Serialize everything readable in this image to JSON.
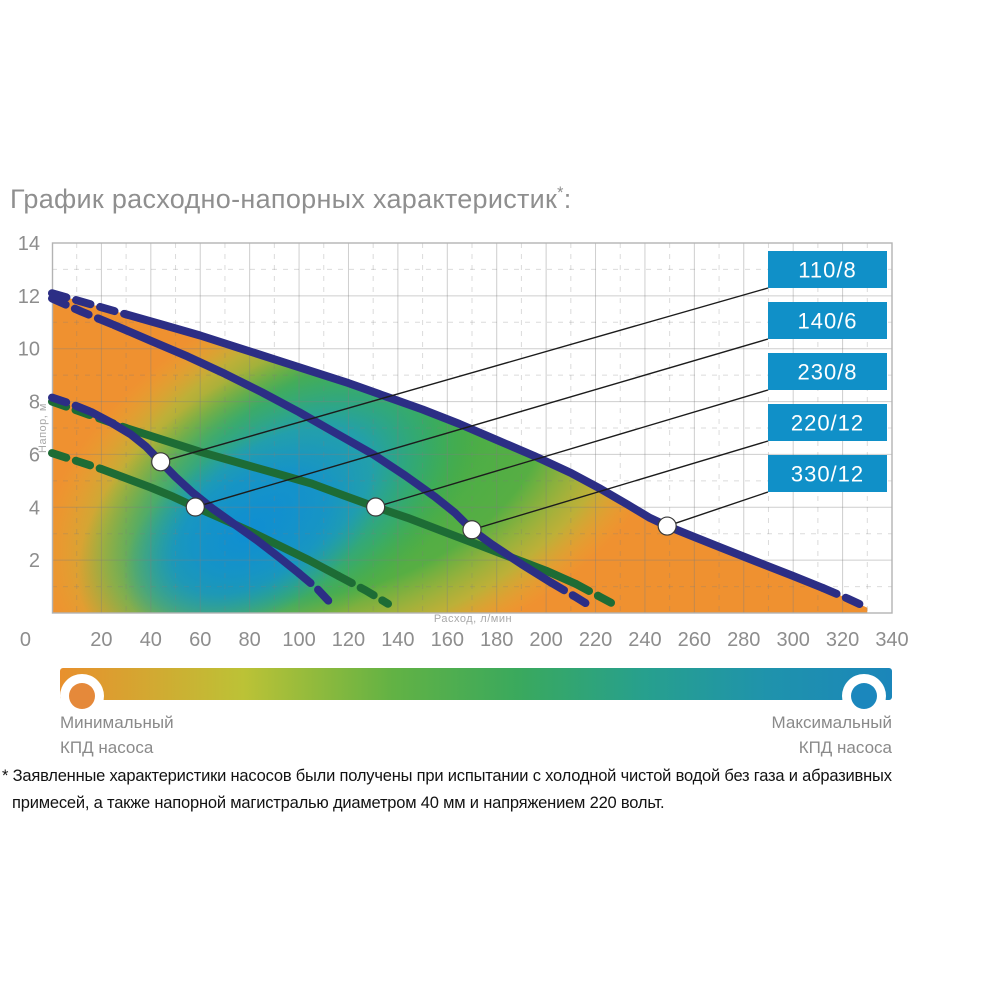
{
  "title": {
    "main": "График расходно-напорных характеристик",
    "mark": "*",
    "suffix": ":"
  },
  "colors": {
    "accent_blue": "#1090c8",
    "curve_navy": "#2c2e85",
    "curve_green": "#1d6c35",
    "field_orange": "#ef9130",
    "gray_text": "#8d8d8d"
  },
  "chart_data": {
    "type": "line",
    "title": "График расходно-напорных характеристик*:",
    "xlabel": "Расход, л/мин",
    "ylabel": "Напор, м",
    "xlim": [
      0,
      340
    ],
    "ylim": [
      0,
      14
    ],
    "grid": "major solid every 20 l/min and 2 m, minor dashed every 10 l/min and 1 m",
    "legend_position": "right",
    "x_ticks": [
      0,
      20,
      40,
      60,
      80,
      100,
      120,
      140,
      160,
      180,
      200,
      220,
      240,
      260,
      280,
      300,
      320,
      340
    ],
    "y_ticks": [
      0,
      2,
      4,
      6,
      8,
      10,
      12,
      14
    ],
    "series": [
      {
        "name": "110/8",
        "color": "#2c2e85",
        "points": [
          [
            0,
            8.15
          ],
          [
            8,
            7.9
          ],
          [
            16,
            7.6
          ],
          [
            24,
            7.2
          ],
          [
            32,
            6.75
          ],
          [
            38,
            6.3
          ],
          [
            44,
            5.72
          ],
          [
            50,
            5.15
          ],
          [
            57,
            4.55
          ],
          [
            65,
            3.95
          ],
          [
            74,
            3.35
          ],
          [
            83,
            2.75
          ],
          [
            92,
            2.1
          ],
          [
            100,
            1.5
          ],
          [
            107,
            0.95
          ],
          [
            112,
            0.45
          ]
        ]
      },
      {
        "name": "140/6",
        "color": "#1d6c35",
        "points": [
          [
            0,
            6.05
          ],
          [
            10,
            5.75
          ],
          [
            20,
            5.45
          ],
          [
            30,
            5.1
          ],
          [
            40,
            4.75
          ],
          [
            49,
            4.4
          ],
          [
            58,
            4.01
          ],
          [
            68,
            3.6
          ],
          [
            80,
            3.1
          ],
          [
            92,
            2.55
          ],
          [
            104,
            2.0
          ],
          [
            116,
            1.4
          ],
          [
            127,
            0.85
          ],
          [
            136,
            0.35
          ]
        ]
      },
      {
        "name": "230/8",
        "color": "#1d6c35",
        "points": [
          [
            0,
            8.0
          ],
          [
            15,
            7.5
          ],
          [
            30,
            7.0
          ],
          [
            45,
            6.55
          ],
          [
            60,
            6.1
          ],
          [
            75,
            5.7
          ],
          [
            90,
            5.3
          ],
          [
            105,
            4.9
          ],
          [
            118,
            4.45
          ],
          [
            131,
            4.01
          ],
          [
            144,
            3.6
          ],
          [
            158,
            3.1
          ],
          [
            172,
            2.6
          ],
          [
            186,
            2.1
          ],
          [
            200,
            1.6
          ],
          [
            212,
            1.1
          ],
          [
            222,
            0.6
          ],
          [
            229,
            0.25
          ]
        ]
      },
      {
        "name": "220/12",
        "color": "#2c2e85",
        "points": [
          [
            0,
            11.9
          ],
          [
            12,
            11.4
          ],
          [
            25,
            10.9
          ],
          [
            40,
            10.3
          ],
          [
            55,
            9.7
          ],
          [
            70,
            9.05
          ],
          [
            85,
            8.35
          ],
          [
            100,
            7.6
          ],
          [
            115,
            6.8
          ],
          [
            130,
            6.0
          ],
          [
            143,
            5.2
          ],
          [
            155,
            4.4
          ],
          [
            163,
            3.8
          ],
          [
            170,
            3.15
          ],
          [
            178,
            2.6
          ],
          [
            190,
            1.85
          ],
          [
            202,
            1.15
          ],
          [
            212,
            0.6
          ],
          [
            219,
            0.2
          ]
        ]
      },
      {
        "name": "330/12",
        "color": "#2c2e85",
        "points": [
          [
            0,
            12.1
          ],
          [
            15,
            11.7
          ],
          [
            30,
            11.3
          ],
          [
            45,
            10.9
          ],
          [
            60,
            10.5
          ],
          [
            75,
            10.05
          ],
          [
            90,
            9.6
          ],
          [
            105,
            9.15
          ],
          [
            120,
            8.7
          ],
          [
            135,
            8.2
          ],
          [
            150,
            7.7
          ],
          [
            165,
            7.15
          ],
          [
            180,
            6.55
          ],
          [
            195,
            5.95
          ],
          [
            210,
            5.3
          ],
          [
            222,
            4.7
          ],
          [
            233,
            4.1
          ],
          [
            242,
            3.6
          ],
          [
            249,
            3.29
          ],
          [
            258,
            2.95
          ],
          [
            270,
            2.5
          ],
          [
            285,
            1.95
          ],
          [
            300,
            1.4
          ],
          [
            312,
            0.95
          ],
          [
            322,
            0.55
          ],
          [
            330,
            0.2
          ]
        ]
      }
    ],
    "callouts": [
      {
        "label": "110/8",
        "series": "110/8",
        "marker": [
          44,
          5.72
        ]
      },
      {
        "label": "140/6",
        "series": "140/6",
        "marker": [
          58,
          4.01
        ]
      },
      {
        "label": "230/8",
        "series": "230/8",
        "marker": [
          131,
          4.01
        ]
      },
      {
        "label": "220/12",
        "series": "220/12",
        "marker": [
          170,
          3.15
        ]
      },
      {
        "label": "330/12",
        "series": "330/12",
        "marker": [
          249,
          3.29
        ]
      }
    ],
    "efficiency_gradient": {
      "min_label_lines": [
        "Минимальный",
        "КПД насоса"
      ],
      "max_label_lines": [
        "Максимальный",
        "КПД насоса"
      ],
      "colors": [
        "#e8902d",
        "#4fae47",
        "#1b86ba"
      ]
    }
  },
  "footnote": "* Заявленные характеристики насосов были получены при испытании с холодной чистой водой без газа и абразивных примесей, а также напорной магистралью диаметром 40 мм и напряжением 220 вольт."
}
